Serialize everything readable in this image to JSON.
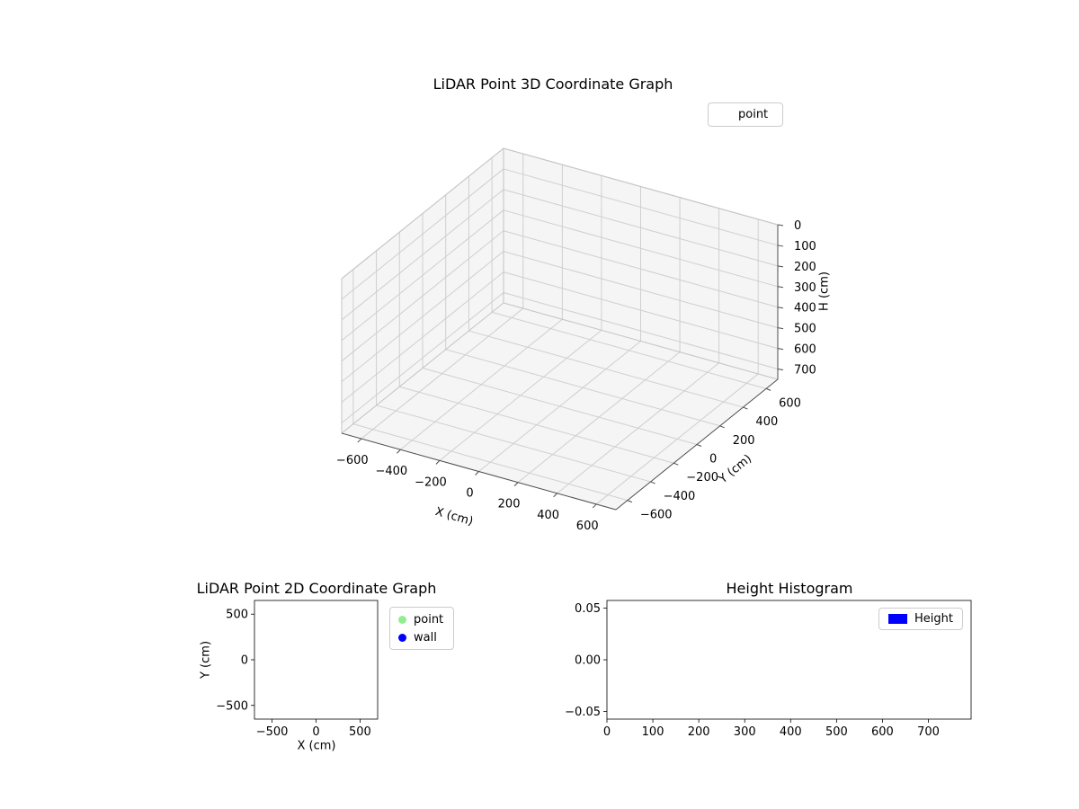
{
  "figure": {
    "background": "#ffffff"
  },
  "chart_data": [
    {
      "id": "lidar-3d",
      "type": "scatter",
      "projection": "3d",
      "title": "LiDAR Point 3D Coordinate Graph",
      "xlabel": "X (cm)",
      "ylabel": "Y (cm)",
      "zlabel": "H (cm)",
      "xticks": [
        -600,
        -400,
        -200,
        0,
        200,
        400,
        600
      ],
      "yticks": [
        -600,
        -400,
        -200,
        0,
        200,
        400,
        600
      ],
      "zticks": [
        0,
        100,
        200,
        300,
        400,
        500,
        600,
        700
      ],
      "xlim": [
        -700,
        700
      ],
      "ylim": [
        -700,
        700
      ],
      "zlim": [
        0,
        750
      ],
      "zaxis_inverted": true,
      "grid": true,
      "legend": [
        {
          "label": "point",
          "marker": "none"
        }
      ],
      "legend_position": "upper right, outside axes",
      "series": [
        {
          "name": "point",
          "points": []
        }
      ]
    },
    {
      "id": "lidar-2d",
      "type": "scatter",
      "title": "LiDAR Point 2D Coordinate Graph",
      "xlabel": "X (cm)",
      "ylabel": "Y (cm)",
      "xticks": [
        -500,
        0,
        500
      ],
      "yticks": [
        -500,
        0,
        500
      ],
      "xlim": [
        -700,
        700
      ],
      "ylim": [
        -650,
        650
      ],
      "grid": false,
      "legend": [
        {
          "label": "point",
          "color": "#90ee90"
        },
        {
          "label": "wall",
          "color": "#0000ff"
        }
      ],
      "legend_position": "outside right of axes",
      "series": [
        {
          "name": "point",
          "points": []
        },
        {
          "name": "wall",
          "points": []
        }
      ]
    },
    {
      "id": "height-histogram",
      "type": "bar",
      "title": "Height Histogram",
      "xlabel": "",
      "ylabel": "",
      "xticks": [
        0,
        100,
        200,
        300,
        400,
        500,
        600,
        700
      ],
      "yticks": [
        -0.05,
        0,
        0.05
      ],
      "ytick_labels": [
        "-0.05",
        "0.00",
        "0.05"
      ],
      "xlim": [
        0,
        793
      ],
      "ylim": [
        -0.0575,
        0.0575
      ],
      "grid": false,
      "legend": [
        {
          "label": "Height",
          "color": "#0000ff"
        }
      ],
      "legend_position": "upper right, inside axes",
      "values": []
    }
  ]
}
